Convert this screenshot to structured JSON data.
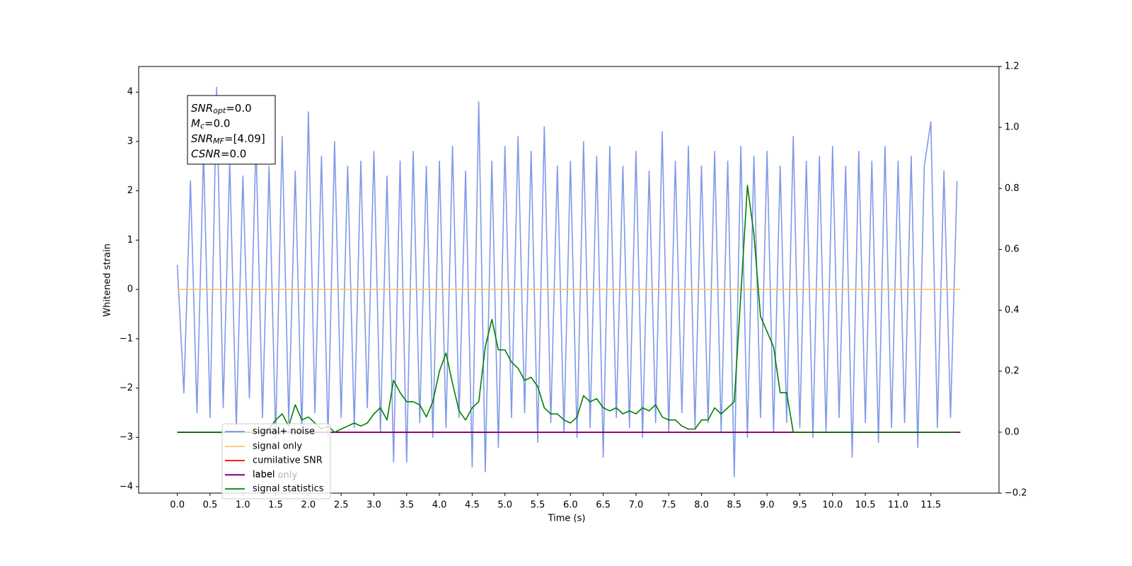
{
  "chart_data": {
    "type": "line",
    "ylabel": "Whitened strain",
    "xlabel": "Time (s)",
    "xlim": [
      -0.59,
      12.54
    ],
    "ylim": [
      -4.13,
      4.52
    ],
    "y2lim": [
      -0.2,
      1.2
    ],
    "xticks": [
      {
        "value": 0,
        "label": "0.0"
      },
      {
        "value": 0.5,
        "label": "0.5"
      },
      {
        "value": 1,
        "label": "1.0"
      },
      {
        "value": 1.5,
        "label": "1.5"
      },
      {
        "value": 2,
        "label": "2.0"
      },
      {
        "value": 2.5,
        "label": "2.5"
      },
      {
        "value": 3,
        "label": "3.0"
      },
      {
        "value": 3.5,
        "label": "3.5"
      },
      {
        "value": 4,
        "label": "4.0"
      },
      {
        "value": 4.5,
        "label": "4.5"
      },
      {
        "value": 5,
        "label": "5.0"
      },
      {
        "value": 5.5,
        "label": "5.5"
      },
      {
        "value": 6,
        "label": "6.0"
      },
      {
        "value": 6.5,
        "label": "6.5"
      },
      {
        "value": 7,
        "label": "7.0"
      },
      {
        "value": 7.5,
        "label": "7.5"
      },
      {
        "value": 8,
        "label": "8.0"
      },
      {
        "value": 8.5,
        "label": "8.5"
      },
      {
        "value": 9,
        "label": "9.0"
      },
      {
        "value": 9.5,
        "label": "9.5"
      },
      {
        "value": 10,
        "label": "10.0"
      },
      {
        "value": 10.5,
        "label": "10.5"
      },
      {
        "value": 11,
        "label": "11.0"
      },
      {
        "value": 11.5,
        "label": "11.5"
      }
    ],
    "yticks": [
      {
        "value": -4,
        "label": "−4"
      },
      {
        "value": -3,
        "label": "−3"
      },
      {
        "value": -2,
        "label": "−2"
      },
      {
        "value": -1,
        "label": "−1"
      },
      0,
      1,
      2,
      3,
      4
    ],
    "y2ticks": [
      {
        "value": -0.2,
        "label": "−0.2"
      },
      {
        "value": 0,
        "label": "0.0"
      },
      0.2,
      0.4,
      0.6,
      0.8,
      {
        "value": 1,
        "label": "1.0"
      },
      1.2
    ],
    "annotations": [
      {
        "main": "SNR",
        "sub": "opt",
        "rest": "=0.0"
      },
      {
        "main": "M",
        "sub": "c",
        "rest": "=0.0"
      },
      {
        "main": "SNR",
        "sub": "MF",
        "rest": "=[4.09]"
      },
      {
        "main": "CSNR",
        "rest": "=0.0"
      }
    ],
    "x": [
      0,
      0.1,
      0.2,
      0.3,
      0.4,
      0.5,
      0.6,
      0.7,
      0.8,
      0.9,
      1,
      1.1,
      1.2,
      1.3,
      1.4,
      1.5,
      1.6,
      1.7,
      1.8,
      1.9,
      2,
      2.1,
      2.2,
      2.3,
      2.4,
      2.5,
      2.6,
      2.7,
      2.8,
      2.9,
      3,
      3.1,
      3.2,
      3.3,
      3.4,
      3.5,
      3.6,
      3.7,
      3.8,
      3.9,
      4,
      4.1,
      4.2,
      4.3,
      4.4,
      4.5,
      4.6,
      4.7,
      4.8,
      4.9,
      5,
      5.1,
      5.2,
      5.3,
      5.4,
      5.5,
      5.6,
      5.7,
      5.8,
      5.9,
      6,
      6.1,
      6.2,
      6.3,
      6.4,
      6.5,
      6.6,
      6.7,
      6.8,
      6.9,
      7,
      7.1,
      7.2,
      7.3,
      7.4,
      7.5,
      7.6,
      7.7,
      7.8,
      7.9,
      8,
      8.1,
      8.2,
      8.3,
      8.4,
      8.5,
      8.6,
      8.7,
      8.8,
      8.9,
      9,
      9.1,
      9.2,
      9.3,
      9.4,
      9.5,
      9.6,
      9.7,
      9.8,
      9.9,
      10,
      10.1,
      10.2,
      10.3,
      10.4,
      10.5,
      10.6,
      10.7,
      10.8,
      10.9,
      11,
      11.1,
      11.2,
      11.3,
      11.4,
      11.5,
      11.6,
      11.7,
      11.8,
      11.9
    ],
    "series": [
      {
        "name": "signal+ noise",
        "color": "#7893e8",
        "axis": "y",
        "values": [
          0.5,
          -2.1,
          2.2,
          -2.5,
          2.8,
          -2.6,
          4.1,
          -2.4,
          2.6,
          -2.8,
          2.3,
          -2.2,
          3.0,
          -2.6,
          2.5,
          -3.0,
          3.1,
          -2.7,
          2.4,
          -2.9,
          3.6,
          -2.5,
          2.7,
          -3.0,
          3.0,
          -2.6,
          2.5,
          -2.8,
          2.6,
          -2.4,
          2.8,
          -2.9,
          2.3,
          -3.5,
          2.6,
          -3.5,
          2.8,
          -2.7,
          2.5,
          -3.0,
          2.6,
          -2.8,
          2.9,
          -2.6,
          2.4,
          -3.6,
          3.8,
          -3.7,
          2.6,
          -3.2,
          2.9,
          -2.6,
          3.1,
          -2.5,
          2.8,
          -3.1,
          3.3,
          -2.7,
          2.5,
          -2.9,
          2.6,
          -3.0,
          3.0,
          -2.8,
          2.7,
          -3.4,
          2.9,
          -2.6,
          2.5,
          -2.8,
          2.8,
          -3.0,
          2.4,
          -2.7,
          3.2,
          -2.9,
          2.6,
          -2.5,
          2.9,
          -2.8,
          2.5,
          -2.7,
          2.8,
          -2.9,
          2.6,
          -3.8,
          2.9,
          -3.0,
          2.7,
          -2.6,
          2.8,
          -2.9,
          2.5,
          -2.7,
          3.1,
          -2.8,
          2.6,
          -3.0,
          2.7,
          -2.9,
          2.9,
          -2.6,
          2.5,
          -3.4,
          2.8,
          -2.7,
          2.6,
          -3.1,
          2.9,
          -2.8,
          2.6,
          -2.7,
          2.7,
          -3.2,
          2.5,
          3.4,
          -2.8,
          2.4,
          -2.6,
          2.2
        ]
      },
      {
        "name": "signal only",
        "color": "#ffc46a",
        "axis": "y",
        "x": [
          0,
          11.95
        ],
        "values": [
          0,
          0
        ]
      },
      {
        "name": "cumilative SNR",
        "color": "#ff0000",
        "axis": "y2",
        "x": [
          0,
          11.95
        ],
        "values": [
          0,
          0
        ]
      },
      {
        "name": "label",
        "color": "#800080",
        "axis": "y2",
        "x": [
          0,
          11.95
        ],
        "values": [
          0,
          0
        ]
      },
      {
        "name": "label only",
        "color": "#800080",
        "axis": "y2",
        "x": [
          0,
          11.95
        ],
        "values": [
          0,
          0
        ]
      },
      {
        "name": "signal statistics",
        "color": "#008000",
        "axis": "y2",
        "values": [
          0,
          0,
          0,
          0,
          0,
          0,
          0,
          0,
          0,
          0,
          0,
          0,
          0,
          0,
          0.01,
          0.04,
          0.06,
          0.02,
          0.09,
          0.04,
          0.05,
          0.03,
          0.01,
          0.02,
          0,
          0.01,
          0.02,
          0.03,
          0.02,
          0.03,
          0.06,
          0.08,
          0.04,
          0.17,
          0.13,
          0.1,
          0.1,
          0.09,
          0.05,
          0.1,
          0.2,
          0.26,
          0.16,
          0.07,
          0.04,
          0.08,
          0.1,
          0.28,
          0.37,
          0.27,
          0.27,
          0.23,
          0.21,
          0.17,
          0.18,
          0.15,
          0.08,
          0.06,
          0.06,
          0.04,
          0.03,
          0.05,
          0.12,
          0.1,
          0.11,
          0.08,
          0.07,
          0.08,
          0.06,
          0.07,
          0.06,
          0.08,
          0.07,
          0.09,
          0.05,
          0.04,
          0.04,
          0.02,
          0.01,
          0.01,
          0.04,
          0.04,
          0.08,
          0.06,
          0.08,
          0.1,
          0.45,
          0.81,
          0.65,
          0.38,
          0.33,
          0.28,
          0.13,
          0.13,
          0,
          0,
          0,
          0,
          0,
          0,
          0,
          0,
          0,
          0,
          0,
          0,
          0,
          0,
          0,
          0,
          0,
          0,
          0,
          0,
          0,
          0,
          0,
          0,
          0,
          0
        ]
      }
    ]
  }
}
